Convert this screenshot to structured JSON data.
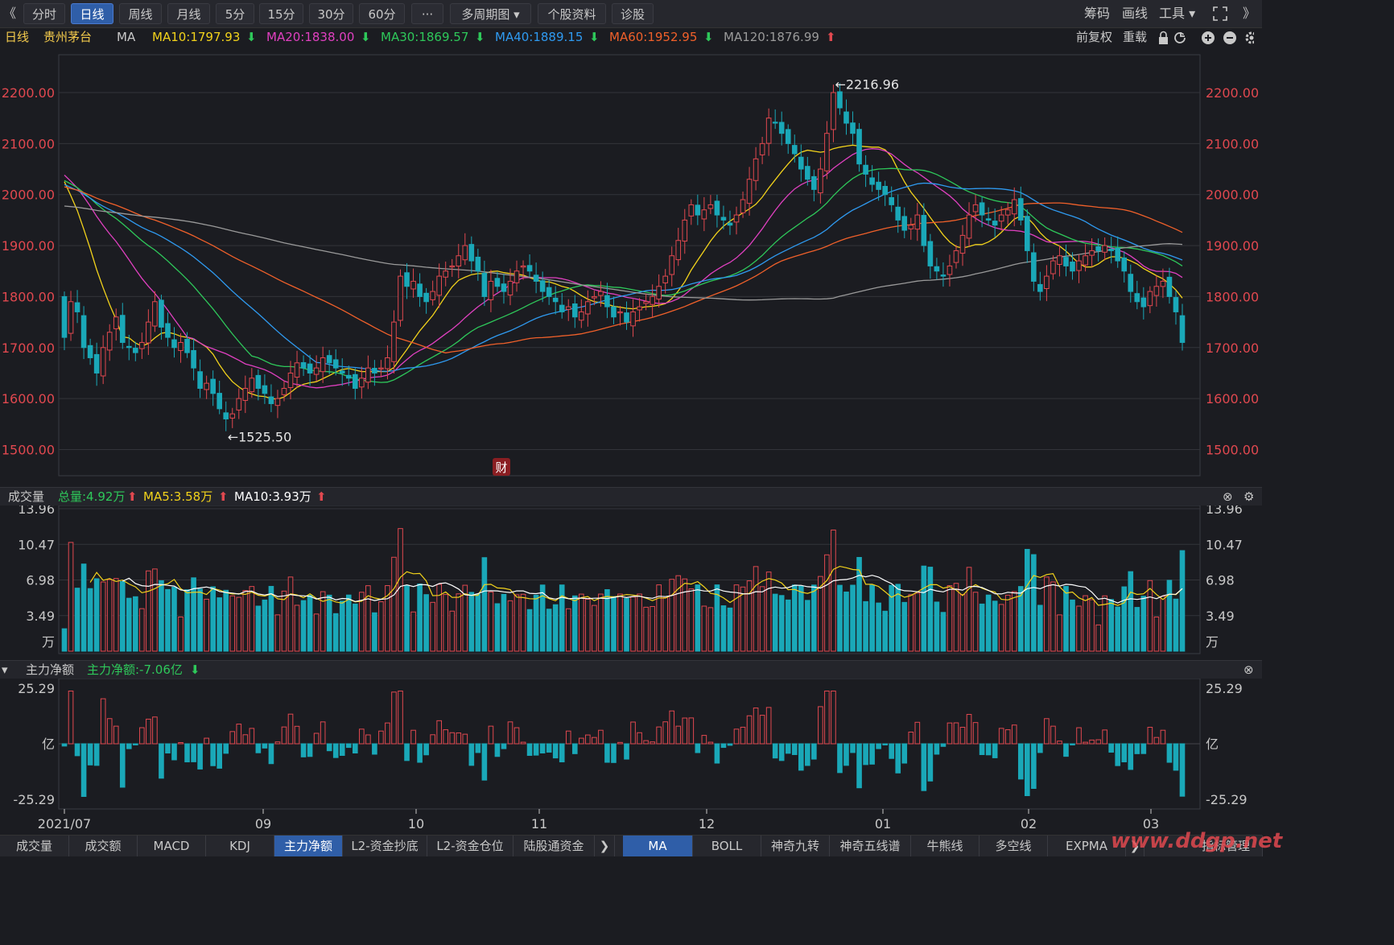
{
  "toolbar": {
    "back": "《",
    "periods": [
      "分时",
      "日线",
      "周线",
      "月线",
      "5分",
      "15分",
      "30分",
      "60分"
    ],
    "active_period": "日线",
    "more": "···",
    "multi": "多周期图 ▾",
    "profile": "个股资料",
    "diagnose": "诊股",
    "right": [
      "筹码",
      "画线",
      "工具 ▾"
    ],
    "fullscreen_icon": "expand-icon",
    "forward": "》"
  },
  "info": {
    "period": "日线",
    "stock": "贵州茅台",
    "indicator": "MA",
    "ma10": "MA10:1797.93",
    "ma20": "MA20:1838.00",
    "ma30": "MA30:1869.57",
    "ma40": "MA40:1889.15",
    "ma60": "MA60:1952.95",
    "ma120": "MA120:1876.99",
    "adjust": "前复权",
    "reset": "重载"
  },
  "volume_bar": {
    "title": "成交量",
    "total": "总量:4.92万",
    "ma5": "MA5:3.58万",
    "ma10": "MA10:3.93万"
  },
  "flow_bar": {
    "title": "主力净额",
    "value": "主力净额:-7.06亿"
  },
  "colors": {
    "up": "#e0484f",
    "down": "#1aa8b8",
    "ma10": "#f2d21b",
    "ma20": "#e040c0",
    "ma30": "#2ec85a",
    "ma40": "#2f9af0",
    "ma60": "#f0602a",
    "ma120": "#9a9a9a"
  },
  "marker_fin": "财",
  "bottom_tabs_left": [
    "成交量",
    "成交额",
    "MACD",
    "KDJ",
    "主力净额",
    "L2-资金抄底",
    "L2-资金仓位",
    "陆股通资金"
  ],
  "active_left_tab": "主力净额",
  "bottom_tabs_right": [
    "MA",
    "BOLL",
    "神奇九转",
    "神奇五线谱",
    "牛熊线",
    "多空线",
    "EXPMA",
    "指标管理"
  ],
  "active_right_tab": "MA",
  "watermark": "www.ddgp.net",
  "chart_data": [
    {
      "type": "candlestick",
      "title": "贵州茅台 日线",
      "x_labels": [
        "2021/07",
        "09",
        "10",
        "11",
        "12",
        "01",
        "02",
        "03"
      ],
      "y_ticks": [
        "2200.00",
        "2100.00",
        "2000.00",
        "1900.00",
        "1800.00",
        "1700.00",
        "1600.00",
        "1500.00"
      ],
      "ylim": [
        1485,
        2230
      ],
      "high_label": "2216.96",
      "low_label": "1525.50",
      "closes": [
        1720,
        1790,
        1770,
        1700,
        1680,
        1650,
        1700,
        1730,
        1760,
        1710,
        1700,
        1690,
        1710,
        1750,
        1790,
        1740,
        1720,
        1700,
        1710,
        1690,
        1660,
        1620,
        1630,
        1610,
        1580,
        1560,
        1570,
        1600,
        1620,
        1640,
        1620,
        1610,
        1590,
        1600,
        1620,
        1650,
        1670,
        1660,
        1650,
        1660,
        1680,
        1670,
        1660,
        1650,
        1640,
        1620,
        1640,
        1660,
        1650,
        1660,
        1680,
        1750,
        1840,
        1820,
        1830,
        1800,
        1790,
        1810,
        1840,
        1850,
        1860,
        1880,
        1900,
        1870,
        1850,
        1800,
        1830,
        1820,
        1810,
        1830,
        1850,
        1860,
        1850,
        1830,
        1810,
        1800,
        1790,
        1770,
        1780,
        1760,
        1770,
        1790,
        1800,
        1810,
        1780,
        1760,
        1770,
        1750,
        1770,
        1780,
        1790,
        1800,
        1820,
        1840,
        1880,
        1910,
        1950,
        1980,
        1960,
        1970,
        1980,
        1960,
        1950,
        1940,
        1960,
        1990,
        2030,
        2070,
        2100,
        2150,
        2140,
        2120,
        2100,
        2080,
        2050,
        2030,
        2010,
        2050,
        2120,
        2200,
        2170,
        2140,
        2120,
        2060,
        2040,
        2020,
        2010,
        2000,
        1980,
        1950,
        1930,
        1940,
        1960,
        1900,
        1860,
        1850,
        1840,
        1860,
        1890,
        1920,
        1960,
        1980,
        1960,
        1950,
        1940,
        1960,
        1970,
        1990,
        1950,
        1890,
        1830,
        1810,
        1840,
        1870,
        1880,
        1860,
        1850,
        1870,
        1880,
        1890,
        1890,
        1900,
        1890,
        1870,
        1850,
        1810,
        1790,
        1780,
        1810,
        1820,
        1830,
        1800,
        1770,
        1710
      ],
      "volume": {
        "ylim": [
          0,
          13.96
        ],
        "ticks": [
          "13.96",
          "10.47",
          "6.98",
          "3.49"
        ],
        "unit": "万"
      },
      "net_flow": {
        "ylim": [
          -25.29,
          25.29
        ],
        "ticks": [
          "25.29",
          "亿",
          "-25.29"
        ]
      }
    }
  ]
}
